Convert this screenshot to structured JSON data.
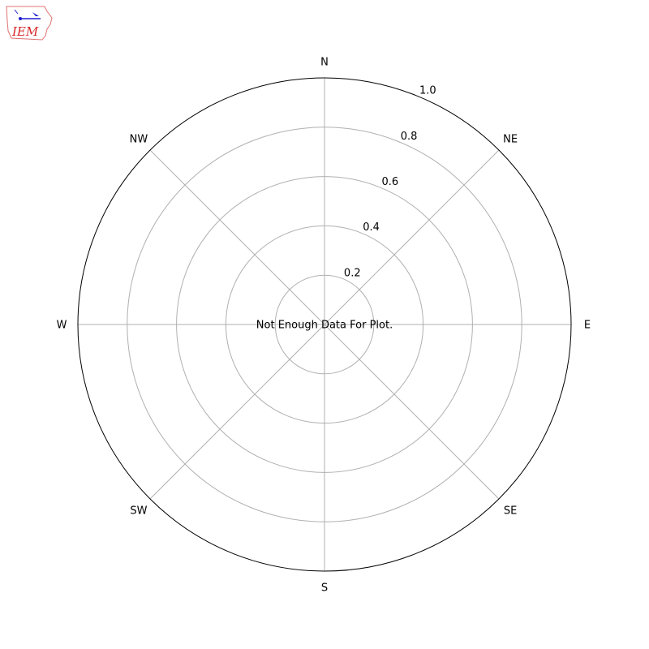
{
  "logo": {
    "text": "IEM"
  },
  "chart_data": {
    "type": "polar",
    "title": "",
    "message": "Not Enough Data For Plot.",
    "direction_labels": [
      "N",
      "NE",
      "E",
      "SE",
      "S",
      "SW",
      "W",
      "NW"
    ],
    "radial_ticks": [
      "0.2",
      "0.4",
      "0.6",
      "0.8",
      "1.0"
    ],
    "rlim": [
      0,
      1.0
    ],
    "grid": true,
    "series": [],
    "colors": {
      "grid": "#b0b0b0",
      "frame": "#000000",
      "logo_red": "#d62728",
      "logo_blue": "#1f1fd0"
    }
  }
}
